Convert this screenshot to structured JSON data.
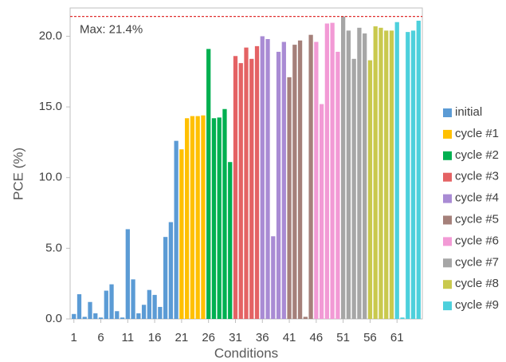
{
  "chart_data": {
    "type": "bar",
    "x_label": "Conditions",
    "y_label": "PCE (%)",
    "annotation": "Max: 21.4%",
    "max_line": 21.4,
    "max_line_color": "#e03030",
    "xlim": [
      0.3,
      65.7
    ],
    "ylim": [
      0,
      22
    ],
    "xticks": [
      1,
      6,
      11,
      16,
      21,
      26,
      31,
      36,
      41,
      46,
      51,
      56,
      61
    ],
    "yticks": [
      {
        "value": 0,
        "label": "0.0"
      },
      {
        "value": 5,
        "label": "5.0"
      },
      {
        "value": 10,
        "label": "10.0"
      },
      {
        "value": 15,
        "label": "15.0"
      },
      {
        "value": 20,
        "label": "20.0"
      }
    ],
    "legend": "right",
    "series": [
      {
        "name": "initial",
        "color": "#5b9bd5",
        "x": [
          1,
          2,
          3,
          4,
          5,
          6,
          7,
          8,
          9,
          10,
          11,
          12,
          13,
          14,
          15,
          16,
          17,
          18,
          19,
          20
        ],
        "values": [
          0.35,
          1.75,
          0.15,
          1.2,
          0.4,
          0.1,
          2.0,
          2.45,
          0.55,
          0.1,
          6.35,
          2.8,
          0.4,
          1.0,
          2.05,
          1.7,
          0.85,
          5.8,
          6.85,
          12.6
        ]
      },
      {
        "name": "cycle #1",
        "color": "#ffc000",
        "x": [
          21,
          22,
          23,
          24,
          25
        ],
        "values": [
          12.0,
          14.2,
          14.35,
          14.35,
          14.4
        ]
      },
      {
        "name": "cycle #2",
        "color": "#00b050",
        "x": [
          26,
          27,
          28,
          29,
          30
        ],
        "values": [
          19.1,
          14.2,
          14.25,
          14.85,
          11.1
        ]
      },
      {
        "name": "cycle #3",
        "color": "#e46264",
        "x": [
          31,
          32,
          33,
          34,
          35
        ],
        "values": [
          18.6,
          18.1,
          19.2,
          18.4,
          19.3
        ]
      },
      {
        "name": "cycle #4",
        "color": "#a98bd4",
        "x": [
          36,
          37,
          38,
          39,
          40
        ],
        "values": [
          20.0,
          19.8,
          5.85,
          18.9,
          19.6
        ]
      },
      {
        "name": "cycle #5",
        "color": "#a5807a",
        "x": [
          41,
          42,
          43,
          44,
          45
        ],
        "values": [
          17.1,
          19.4,
          19.7,
          0.15,
          20.1
        ]
      },
      {
        "name": "cycle #6",
        "color": "#f29ad5",
        "x": [
          46,
          47,
          48,
          49,
          50
        ],
        "values": [
          19.6,
          15.2,
          20.9,
          20.95,
          18.9
        ]
      },
      {
        "name": "cycle #7",
        "color": "#a6a6a6",
        "x": [
          51,
          52,
          53,
          54,
          55
        ],
        "values": [
          21.4,
          20.4,
          18.4,
          20.6,
          20.2
        ]
      },
      {
        "name": "cycle #8",
        "color": "#c9c94d",
        "x": [
          56,
          57,
          58,
          59,
          60
        ],
        "values": [
          18.3,
          20.7,
          20.6,
          20.4,
          20.4
        ]
      },
      {
        "name": "cycle #9",
        "color": "#4dd0dc",
        "x": [
          61,
          62,
          63,
          64,
          65
        ],
        "values": [
          21.0,
          0.1,
          20.3,
          20.4,
          21.1
        ]
      }
    ]
  }
}
